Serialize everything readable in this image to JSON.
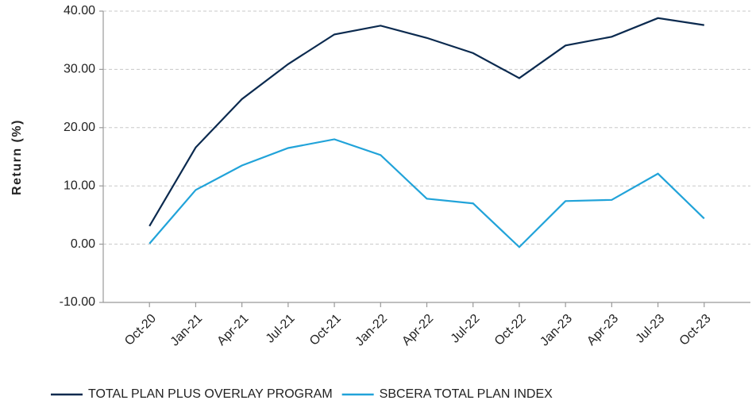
{
  "chart_data": {
    "type": "line",
    "y_label": "Return (%)",
    "categories": [
      "Oct-20",
      "Jan-21",
      "Apr-21",
      "Jul-21",
      "Oct-21",
      "Jan-22",
      "Apr-22",
      "Jul-22",
      "Oct-22",
      "Jan-23",
      "Apr-23",
      "Jul-23",
      "Oct-23"
    ],
    "series": [
      {
        "name": "TOTAL PLAN PLUS OVERLAY PROGRAM",
        "color": "#0b2a4f",
        "values": [
          3.1,
          16.6,
          24.9,
          30.9,
          36.0,
          37.5,
          35.4,
          32.8,
          28.5,
          34.1,
          35.6,
          38.8,
          37.6
        ]
      },
      {
        "name": "SBCERA TOTAL PLAN INDEX",
        "color": "#21a3d9",
        "values": [
          0.1,
          9.3,
          13.5,
          16.5,
          18.0,
          15.3,
          7.8,
          7.0,
          -0.5,
          7.4,
          7.6,
          12.1,
          4.4
        ]
      }
    ],
    "ylim": [
      -10,
      40
    ],
    "yticks": [
      {
        "value": -10,
        "label": "-10.00"
      },
      {
        "value": 0,
        "label": "0.00"
      },
      {
        "value": 10,
        "label": "10.00"
      },
      {
        "value": 20,
        "label": "20.00"
      },
      {
        "value": 30,
        "label": "30.00"
      },
      {
        "value": 40,
        "label": "40.00"
      }
    ],
    "grid": true,
    "legend": "bottom"
  }
}
